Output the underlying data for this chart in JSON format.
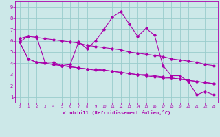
{
  "xlabel": "Windchill (Refroidissement éolien,°C)",
  "background_color": "#cce8e8",
  "line_color": "#aa00aa",
  "grid_color": "#99cccc",
  "x": [
    0,
    1,
    2,
    3,
    4,
    5,
    6,
    7,
    8,
    9,
    10,
    11,
    12,
    13,
    14,
    15,
    16,
    17,
    18,
    19,
    20,
    21,
    22,
    23
  ],
  "series1": [
    5.9,
    6.4,
    6.4,
    4.1,
    4.1,
    3.8,
    3.9,
    5.9,
    5.3,
    6.0,
    7.0,
    8.1,
    8.6,
    7.5,
    6.4,
    7.1,
    6.5,
    3.8,
    2.9,
    2.9,
    2.4,
    1.2,
    1.5,
    1.2
  ],
  "series2": [
    6.2,
    6.4,
    6.3,
    6.2,
    6.1,
    6.0,
    5.9,
    5.8,
    5.6,
    5.5,
    5.4,
    5.3,
    5.2,
    5.0,
    4.9,
    4.8,
    4.7,
    4.6,
    4.4,
    4.3,
    4.2,
    4.1,
    3.9,
    3.8
  ],
  "series3": [
    5.9,
    4.4,
    4.1,
    4.0,
    3.9,
    3.8,
    3.7,
    3.6,
    3.5,
    3.4,
    3.4,
    3.3,
    3.2,
    3.1,
    3.0,
    2.9,
    2.8,
    2.7,
    2.7,
    2.6,
    2.5,
    2.4,
    2.3,
    2.2
  ],
  "series4": [
    5.9,
    4.4,
    4.1,
    4.0,
    3.9,
    3.8,
    3.7,
    3.6,
    3.5,
    3.5,
    3.4,
    3.3,
    3.2,
    3.1,
    3.0,
    3.0,
    2.9,
    2.8,
    2.7,
    2.6,
    2.5,
    2.4,
    2.3,
    2.2
  ],
  "xlim": [
    -0.5,
    23.5
  ],
  "ylim": [
    0.5,
    9.5
  ],
  "yticks": [
    1,
    2,
    3,
    4,
    5,
    6,
    7,
    8,
    9
  ],
  "xticks": [
    0,
    1,
    2,
    3,
    4,
    5,
    6,
    7,
    8,
    9,
    10,
    11,
    12,
    13,
    14,
    15,
    16,
    17,
    18,
    19,
    20,
    21,
    22,
    23
  ]
}
